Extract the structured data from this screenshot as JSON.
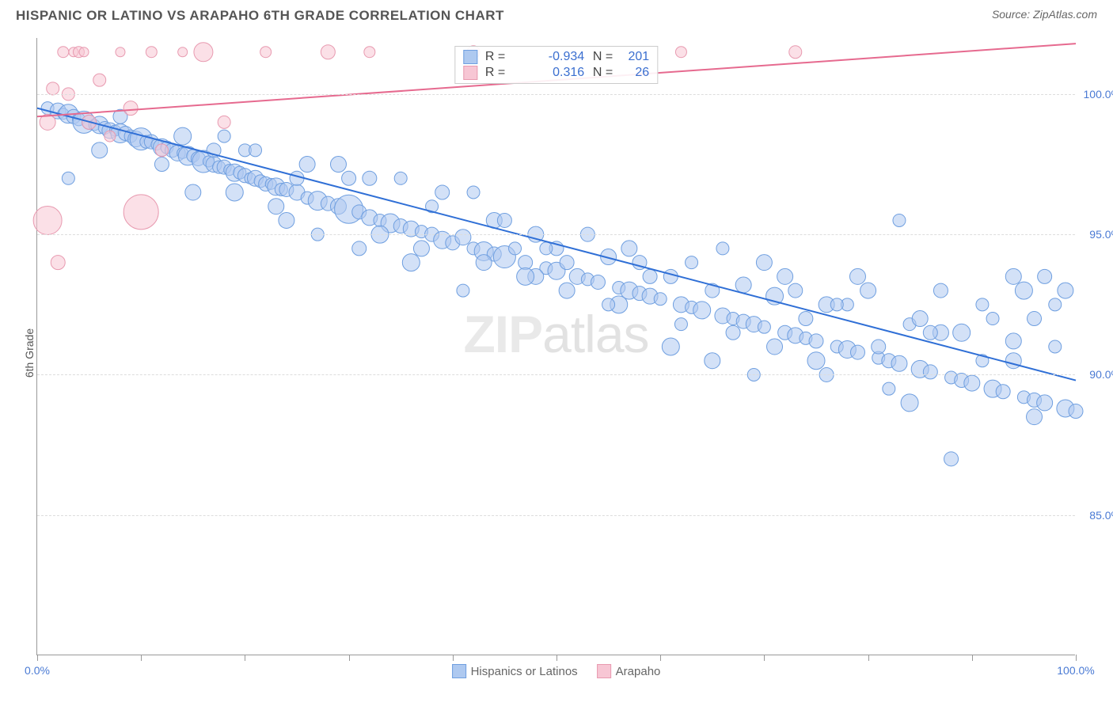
{
  "header": {
    "title": "HISPANIC OR LATINO VS ARAPAHO 6TH GRADE CORRELATION CHART",
    "source": "Source: ZipAtlas.com"
  },
  "chart": {
    "type": "scatter",
    "ylabel": "6th Grade",
    "watermark_bold": "ZIP",
    "watermark_light": "atlas",
    "background_color": "#ffffff",
    "grid_color": "#dddddd",
    "axis_color": "#999999",
    "ylabel_color": "#555555",
    "x_range": [
      0,
      100
    ],
    "y_range": [
      80,
      102
    ],
    "x_ticks": [
      0,
      10,
      20,
      30,
      40,
      50,
      60,
      70,
      80,
      90,
      100
    ],
    "x_tick_labels": {
      "0": "0.0%",
      "100": "100.0%"
    },
    "y_gridlines": [
      85,
      90,
      95,
      100
    ],
    "y_tick_labels": {
      "85": "85.0%",
      "90": "90.0%",
      "95": "95.0%",
      "100": "100.0%"
    },
    "legend": [
      {
        "label": "Hispanics or Latinos",
        "fill": "#aec9f0",
        "stroke": "#6f9fe0"
      },
      {
        "label": "Arapaho",
        "fill": "#f7c6d4",
        "stroke": "#e89ab0"
      }
    ],
    "stats": [
      {
        "swatch_fill": "#aec9f0",
        "swatch_stroke": "#6f9fe0",
        "r_label": "R =",
        "r": "-0.934",
        "n_label": "N =",
        "n": "201"
      },
      {
        "swatch_fill": "#f7c6d4",
        "swatch_stroke": "#e89ab0",
        "r_label": "R =",
        "r": "0.316",
        "n_label": "N =",
        "n": "26"
      }
    ],
    "series": [
      {
        "name": "hispanics",
        "fill": "#aec9f0",
        "stroke": "#6f9fe0",
        "fill_opacity": 0.55,
        "regression": {
          "x1": 0,
          "y1": 99.5,
          "x2": 100,
          "y2": 89.8,
          "color": "#2f6fd6",
          "width": 2
        },
        "points": [
          [
            1,
            99.5,
            8
          ],
          [
            2,
            99.4,
            10
          ],
          [
            2.5,
            99.3,
            7
          ],
          [
            3,
            99.3,
            12
          ],
          [
            3.5,
            99.2,
            9
          ],
          [
            4,
            99.1,
            8
          ],
          [
            4.5,
            99.0,
            14
          ],
          [
            5,
            99.0,
            9
          ],
          [
            5.5,
            98.9,
            7
          ],
          [
            6,
            98.9,
            11
          ],
          [
            6.5,
            98.8,
            8
          ],
          [
            7,
            98.7,
            10
          ],
          [
            7.5,
            98.7,
            7
          ],
          [
            8,
            98.6,
            12
          ],
          [
            8.5,
            98.6,
            9
          ],
          [
            9,
            98.5,
            8
          ],
          [
            9.5,
            98.4,
            10
          ],
          [
            10,
            98.4,
            14
          ],
          [
            10.5,
            98.3,
            8
          ],
          [
            11,
            98.3,
            9
          ],
          [
            11.5,
            98.2,
            7
          ],
          [
            12,
            98.1,
            11
          ],
          [
            12.5,
            98.1,
            8
          ],
          [
            13,
            98.0,
            9
          ],
          [
            13.5,
            97.9,
            10
          ],
          [
            14,
            97.9,
            7
          ],
          [
            14.5,
            97.8,
            12
          ],
          [
            15,
            97.8,
            8
          ],
          [
            15.5,
            97.7,
            9
          ],
          [
            16,
            97.6,
            14
          ],
          [
            16.5,
            97.6,
            7
          ],
          [
            17,
            97.5,
            10
          ],
          [
            17.5,
            97.4,
            8
          ],
          [
            18,
            97.4,
            9
          ],
          [
            18.5,
            97.3,
            7
          ],
          [
            19,
            97.2,
            11
          ],
          [
            19.5,
            97.2,
            8
          ],
          [
            20,
            97.1,
            9
          ],
          [
            20.5,
            97.0,
            7
          ],
          [
            21,
            97.0,
            10
          ],
          [
            21.5,
            96.9,
            8
          ],
          [
            22,
            96.8,
            9
          ],
          [
            22.5,
            96.8,
            7
          ],
          [
            23,
            96.7,
            11
          ],
          [
            23.5,
            96.6,
            8
          ],
          [
            24,
            96.6,
            9
          ],
          [
            25,
            96.5,
            10
          ],
          [
            26,
            96.3,
            8
          ],
          [
            27,
            96.2,
            12
          ],
          [
            28,
            96.1,
            9
          ],
          [
            29,
            96.0,
            10
          ],
          [
            30,
            95.9,
            18
          ],
          [
            31,
            95.8,
            9
          ],
          [
            32,
            95.6,
            10
          ],
          [
            33,
            95.5,
            8
          ],
          [
            34,
            95.4,
            12
          ],
          [
            35,
            95.3,
            9
          ],
          [
            36,
            95.2,
            10
          ],
          [
            37,
            95.1,
            8
          ],
          [
            38,
            95.0,
            9
          ],
          [
            39,
            94.8,
            11
          ],
          [
            40,
            94.7,
            9
          ],
          [
            41,
            94.9,
            10
          ],
          [
            42,
            94.5,
            8
          ],
          [
            43,
            94.4,
            12
          ],
          [
            44,
            94.3,
            9
          ],
          [
            45,
            94.2,
            14
          ],
          [
            46,
            94.5,
            8
          ],
          [
            47,
            94.0,
            9
          ],
          [
            48,
            95.0,
            10
          ],
          [
            49,
            93.8,
            8
          ],
          [
            50,
            93.7,
            11
          ],
          [
            51,
            94.0,
            9
          ],
          [
            52,
            93.5,
            10
          ],
          [
            53,
            93.4,
            8
          ],
          [
            54,
            93.3,
            9
          ],
          [
            55,
            94.2,
            10
          ],
          [
            56,
            93.1,
            8
          ],
          [
            57,
            93.0,
            11
          ],
          [
            58,
            92.9,
            9
          ],
          [
            59,
            92.8,
            10
          ],
          [
            60,
            92.7,
            8
          ],
          [
            61,
            93.5,
            9
          ],
          [
            62,
            92.5,
            10
          ],
          [
            63,
            92.4,
            8
          ],
          [
            64,
            92.3,
            11
          ],
          [
            65,
            93.0,
            9
          ],
          [
            66,
            92.1,
            10
          ],
          [
            67,
            92.0,
            8
          ],
          [
            68,
            91.9,
            9
          ],
          [
            69,
            91.8,
            10
          ],
          [
            70,
            91.7,
            8
          ],
          [
            71,
            92.8,
            11
          ],
          [
            72,
            91.5,
            9
          ],
          [
            73,
            91.4,
            10
          ],
          [
            74,
            91.3,
            8
          ],
          [
            75,
            91.2,
            9
          ],
          [
            76,
            92.5,
            10
          ],
          [
            77,
            91.0,
            8
          ],
          [
            78,
            90.9,
            11
          ],
          [
            79,
            90.8,
            9
          ],
          [
            80,
            93.0,
            10
          ],
          [
            81,
            90.6,
            8
          ],
          [
            82,
            90.5,
            9
          ],
          [
            83,
            90.4,
            10
          ],
          [
            84,
            91.8,
            8
          ],
          [
            85,
            90.2,
            11
          ],
          [
            86,
            90.1,
            9
          ],
          [
            87,
            91.5,
            10
          ],
          [
            88,
            89.9,
            8
          ],
          [
            89,
            89.8,
            9
          ],
          [
            90,
            89.7,
            10
          ],
          [
            91,
            90.5,
            8
          ],
          [
            92,
            89.5,
            11
          ],
          [
            93,
            89.4,
            9
          ],
          [
            94,
            91.2,
            10
          ],
          [
            95,
            89.2,
            8
          ],
          [
            96,
            89.1,
            9
          ],
          [
            97,
            89.0,
            10
          ],
          [
            98,
            91.0,
            8
          ],
          [
            99,
            88.8,
            11
          ],
          [
            100,
            88.7,
            9
          ],
          [
            88,
            87.0,
            9
          ],
          [
            96,
            88.5,
            10
          ],
          [
            82,
            89.5,
            8
          ],
          [
            74,
            92.0,
            9
          ],
          [
            68,
            93.2,
            10
          ],
          [
            62,
            91.8,
            8
          ],
          [
            56,
            92.5,
            11
          ],
          [
            50,
            94.5,
            9
          ],
          [
            44,
            95.5,
            10
          ],
          [
            38,
            96.0,
            8
          ],
          [
            32,
            97.0,
            9
          ],
          [
            26,
            97.5,
            10
          ],
          [
            20,
            98.0,
            8
          ],
          [
            14,
            98.5,
            11
          ],
          [
            8,
            99.2,
            9
          ],
          [
            70,
            94.0,
            10
          ],
          [
            78,
            92.5,
            8
          ],
          [
            86,
            91.5,
            9
          ],
          [
            94,
            90.5,
            10
          ],
          [
            92,
            92.0,
            8
          ],
          [
            84,
            89.0,
            11
          ],
          [
            76,
            90.0,
            9
          ],
          [
            72,
            93.5,
            10
          ],
          [
            66,
            94.5,
            8
          ],
          [
            58,
            94.0,
            9
          ],
          [
            48,
            93.5,
            10
          ],
          [
            42,
            96.5,
            8
          ],
          [
            36,
            94.0,
            11
          ],
          [
            30,
            97.0,
            9
          ],
          [
            24,
            95.5,
            10
          ],
          [
            18,
            98.5,
            8
          ],
          [
            12,
            97.5,
            9
          ],
          [
            6,
            98.0,
            10
          ],
          [
            3,
            97.0,
            8
          ],
          [
            95,
            93.0,
            11
          ],
          [
            97,
            93.5,
            9
          ],
          [
            99,
            93.0,
            10
          ],
          [
            98,
            92.5,
            8
          ],
          [
            96,
            92.0,
            9
          ],
          [
            94,
            93.5,
            10
          ],
          [
            91,
            92.5,
            8
          ],
          [
            89,
            91.5,
            11
          ],
          [
            87,
            93.0,
            9
          ],
          [
            85,
            92.0,
            10
          ],
          [
            83,
            95.5,
            8
          ],
          [
            81,
            91.0,
            9
          ],
          [
            79,
            93.5,
            10
          ],
          [
            77,
            92.5,
            8
          ],
          [
            75,
            90.5,
            11
          ],
          [
            73,
            93.0,
            9
          ],
          [
            71,
            91.0,
            10
          ],
          [
            69,
            90.0,
            8
          ],
          [
            67,
            91.5,
            9
          ],
          [
            65,
            90.5,
            10
          ],
          [
            63,
            94.0,
            8
          ],
          [
            61,
            91.0,
            11
          ],
          [
            59,
            93.5,
            9
          ],
          [
            57,
            94.5,
            10
          ],
          [
            55,
            92.5,
            8
          ],
          [
            53,
            95.0,
            9
          ],
          [
            51,
            93.0,
            10
          ],
          [
            49,
            94.5,
            8
          ],
          [
            47,
            93.5,
            11
          ],
          [
            45,
            95.5,
            9
          ],
          [
            43,
            94.0,
            10
          ],
          [
            41,
            93.0,
            8
          ],
          [
            39,
            96.5,
            9
          ],
          [
            37,
            94.5,
            10
          ],
          [
            35,
            97.0,
            8
          ],
          [
            33,
            95.0,
            11
          ],
          [
            31,
            94.5,
            9
          ],
          [
            29,
            97.5,
            10
          ],
          [
            27,
            95.0,
            8
          ],
          [
            25,
            97.0,
            9
          ],
          [
            23,
            96.0,
            10
          ],
          [
            21,
            98.0,
            8
          ],
          [
            19,
            96.5,
            11
          ],
          [
            17,
            98.0,
            9
          ],
          [
            15,
            96.5,
            10
          ]
        ]
      },
      {
        "name": "arapaho",
        "fill": "#f7c6d4",
        "stroke": "#e89ab0",
        "fill_opacity": 0.55,
        "regression": {
          "x1": 0,
          "y1": 99.2,
          "x2": 100,
          "y2": 101.8,
          "color": "#e66a8f",
          "width": 2
        },
        "points": [
          [
            1,
            99.0,
            10
          ],
          [
            1.5,
            100.2,
            8
          ],
          [
            2,
            94.0,
            9
          ],
          [
            2.5,
            101.5,
            7
          ],
          [
            3,
            100.0,
            8
          ],
          [
            3.5,
            101.5,
            6
          ],
          [
            4,
            101.5,
            7
          ],
          [
            4.5,
            101.5,
            6
          ],
          [
            5,
            99.0,
            9
          ],
          [
            6,
            100.5,
            8
          ],
          [
            7,
            98.5,
            7
          ],
          [
            8,
            101.5,
            6
          ],
          [
            9,
            99.5,
            9
          ],
          [
            10,
            95.8,
            22
          ],
          [
            11,
            101.5,
            7
          ],
          [
            12,
            98.0,
            8
          ],
          [
            14,
            101.5,
            6
          ],
          [
            16,
            101.5,
            12
          ],
          [
            18,
            99.0,
            8
          ],
          [
            22,
            101.5,
            7
          ],
          [
            28,
            101.5,
            9
          ],
          [
            32,
            101.5,
            7
          ],
          [
            42,
            101.5,
            8
          ],
          [
            62,
            101.5,
            7
          ],
          [
            73,
            101.5,
            8
          ],
          [
            1,
            95.5,
            18
          ]
        ]
      }
    ]
  }
}
